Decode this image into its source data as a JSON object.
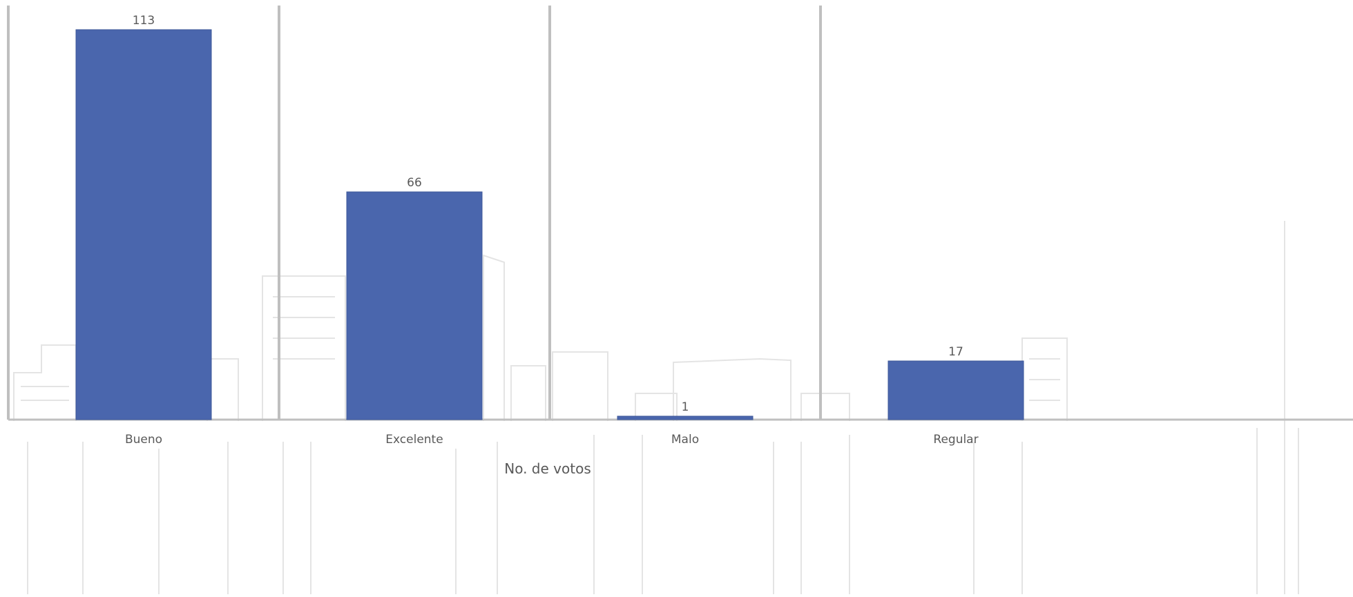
{
  "chart_data": {
    "type": "bar",
    "title": "",
    "xlabel": "No. de votos",
    "ylabel": "",
    "categories": [
      "Bueno",
      "Excelente",
      "Malo",
      "Regular"
    ],
    "values": [
      113,
      66,
      1,
      17
    ],
    "data_labels": [
      "113",
      "66",
      "1",
      "17"
    ],
    "ylim": [
      0,
      120
    ],
    "grid": false,
    "legend": "none",
    "colors": {
      "bar": "#4a66ad",
      "bar_stroke": "#3f5899",
      "separator": "#bfbfbf",
      "axis": "#bfbfbf",
      "label_text": "#595959"
    }
  }
}
